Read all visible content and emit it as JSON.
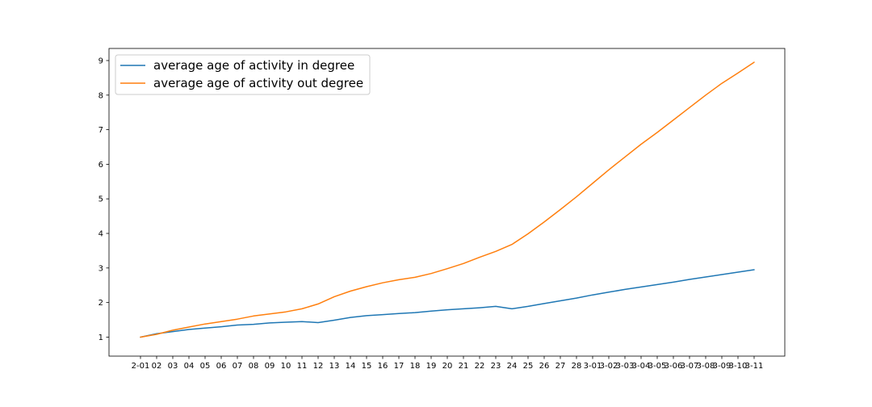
{
  "chart_data": {
    "type": "line",
    "title": "",
    "xlabel": "",
    "ylabel": "",
    "x": [
      "2-01",
      "02",
      "03",
      "04",
      "05",
      "06",
      "07",
      "08",
      "09",
      "10",
      "11",
      "12",
      "13",
      "14",
      "15",
      "16",
      "17",
      "18",
      "19",
      "20",
      "21",
      "22",
      "23",
      "24",
      "25",
      "26",
      "27",
      "28",
      "3-01",
      "3-02",
      "3-03",
      "3-04",
      "3-05",
      "3-06",
      "3-07",
      "3-08",
      "3-09",
      "3-10",
      "3-11"
    ],
    "ylim": [
      0.45,
      9.35
    ],
    "yticks": [
      1,
      2,
      3,
      4,
      5,
      6,
      7,
      8,
      9
    ],
    "grid": false,
    "legend": "top-left",
    "series": [
      {
        "name": "average age of activity in degree",
        "color": "#1f77b4",
        "values": [
          1.0,
          1.1,
          1.16,
          1.22,
          1.26,
          1.3,
          1.35,
          1.37,
          1.41,
          1.43,
          1.45,
          1.42,
          1.49,
          1.57,
          1.62,
          1.65,
          1.68,
          1.71,
          1.75,
          1.79,
          1.82,
          1.85,
          1.89,
          1.82,
          1.89,
          1.97,
          2.05,
          2.13,
          2.22,
          2.3,
          2.38,
          2.45,
          2.52,
          2.59,
          2.67,
          2.74,
          2.81,
          2.88,
          2.95
        ]
      },
      {
        "name": "average age of activity out degree",
        "color": "#ff7f0e",
        "values": [
          1.0,
          1.08,
          1.2,
          1.29,
          1.38,
          1.45,
          1.52,
          1.61,
          1.67,
          1.73,
          1.82,
          1.96,
          2.17,
          2.33,
          2.46,
          2.57,
          2.66,
          2.73,
          2.84,
          2.98,
          3.13,
          3.31,
          3.48,
          3.68,
          3.99,
          4.33,
          4.69,
          5.06,
          5.45,
          5.84,
          6.21,
          6.58,
          6.92,
          7.28,
          7.64,
          8.0,
          8.34,
          8.64,
          8.95
        ]
      }
    ]
  }
}
